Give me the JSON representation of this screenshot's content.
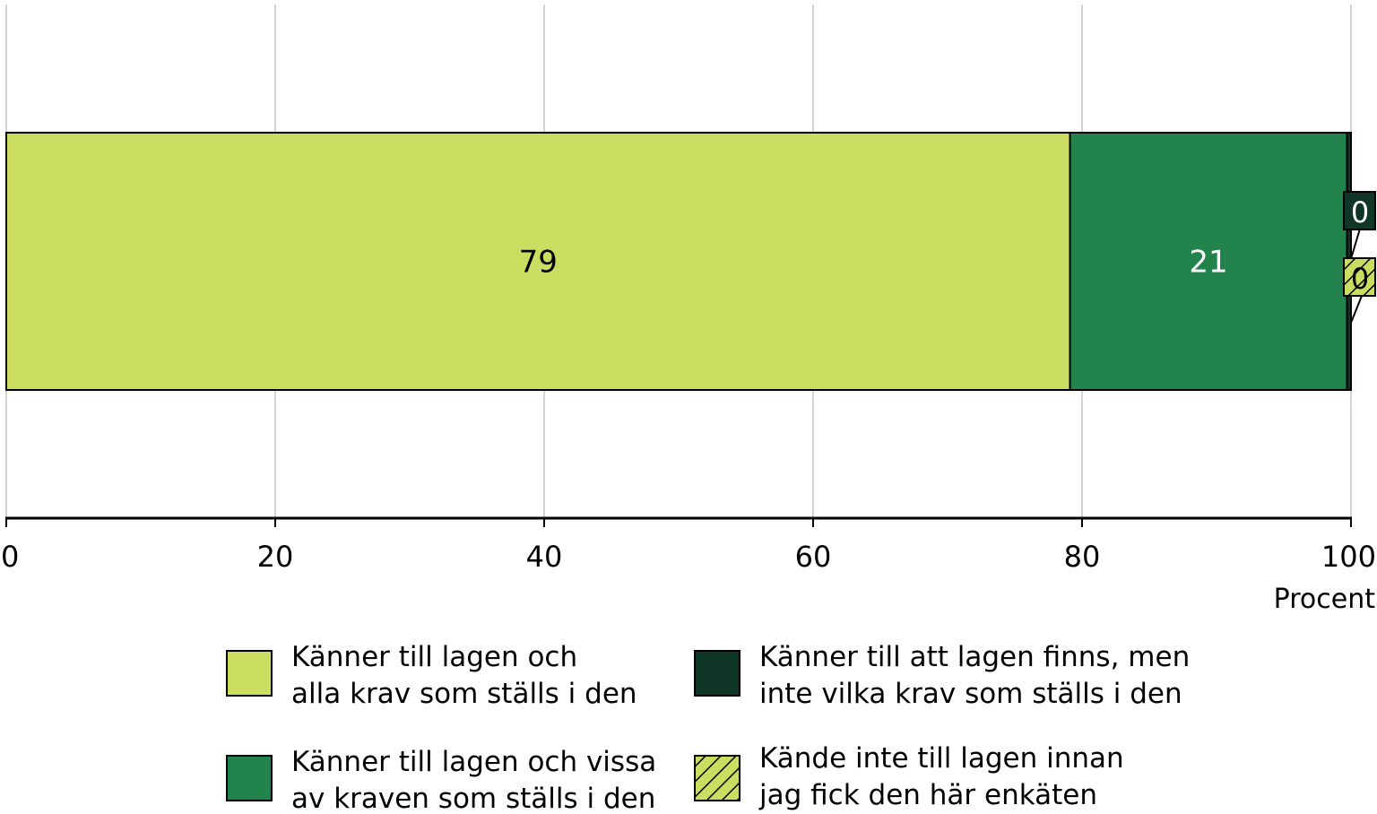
{
  "chart_data": {
    "type": "bar",
    "orientation": "horizontal",
    "stacked": true,
    "categories": [
      ""
    ],
    "series": [
      {
        "name": "Känner till lagen och alla krav som ställs i den",
        "legend_lines": [
          "Känner till lagen och",
          "alla krav som ställs i den"
        ],
        "value": 79.1,
        "label": "79",
        "color": "#cbdd60",
        "label_color": "#000000",
        "hatch": false
      },
      {
        "name": "Känner till lagen och vissa av kraven som ställs i den",
        "legend_lines": [
          "Känner till lagen och vissa",
          "av kraven som ställs i den"
        ],
        "value": 20.6,
        "label": "21",
        "color": "#22844c",
        "label_color": "#ffffff",
        "hatch": false
      },
      {
        "name": "Känner till att lagen finns, men inte vilka krav som ställs i den",
        "legend_lines": [
          "Känner till att lagen finns, men",
          "inte vilka krav som ställs i den"
        ],
        "value": 0.3,
        "label": "0",
        "color": "#0f3627",
        "label_color": "#ffffff",
        "hatch": false
      },
      {
        "name": "Kände inte till lagen innan jag fick den här enkäten",
        "legend_lines": [
          "Kände inte till lagen innan",
          "jag fick den här enkäten"
        ],
        "value": 0.0,
        "label": "0",
        "color": "#cbdd60",
        "label_color": "#000000",
        "hatch": true
      }
    ],
    "xlim": [
      0,
      100
    ],
    "xticks": [
      "0",
      "20",
      "40",
      "60",
      "80",
      "100"
    ],
    "xlabel": "Procent",
    "grid": true,
    "legend_placement": "bottom"
  }
}
